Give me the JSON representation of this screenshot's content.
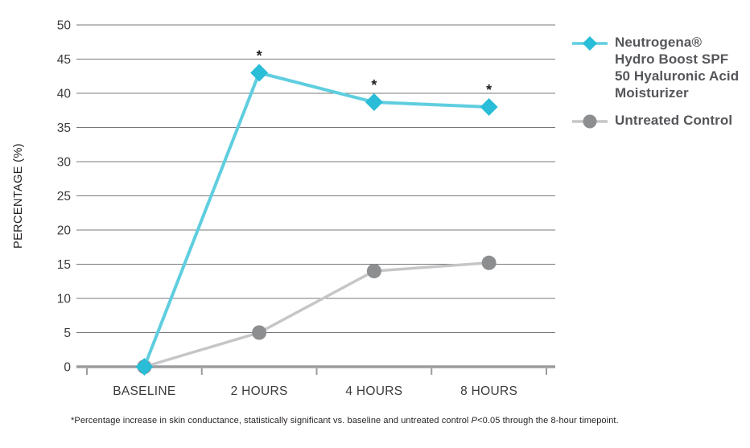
{
  "chart_data": {
    "type": "line",
    "categories": [
      "BASELINE",
      "2 HOURS",
      "4 HOURS",
      "8 HOURS"
    ],
    "series": [
      {
        "name": "Neutrogena® Hydro Boost SPF 50 Hyaluronic Acid Moisturizer",
        "values": [
          0,
          43,
          38.7,
          38
        ],
        "marker": "diamond",
        "marker_color": "#29BDD7",
        "line_color": "#5FCEDF",
        "point_annotations": [
          "",
          "*",
          "*",
          "*"
        ]
      },
      {
        "name": "Untreated Control",
        "values": [
          0,
          5,
          14,
          15.2
        ],
        "marker": "circle",
        "marker_color": "#8D8E90",
        "line_color": "#C5C6C8",
        "point_annotations": [
          "",
          "",
          "",
          ""
        ]
      }
    ],
    "title": "",
    "xlabel": "",
    "ylabel": "PERCENTAGE (%)",
    "ylim": [
      0,
      50
    ],
    "ytick_step": 5,
    "ytick_labels": [
      "0",
      "5",
      "10",
      "15",
      "20",
      "25",
      "30",
      "35",
      "40",
      "45",
      "50"
    ],
    "grid": true,
    "legend_position": "right",
    "axis_colors": {
      "gridline": "#77787B",
      "zero_line": "#9B9C9E",
      "tick_label": "#3B3B3D",
      "axis_title": "#231F20",
      "annotation": "#231F20"
    }
  },
  "footnote": {
    "pre": "*Percentage increase in skin conductance, statistically significant vs. baseline and untreated control ",
    "italic": "P",
    "post": "<0.05 through the 8-hour timepoint."
  }
}
